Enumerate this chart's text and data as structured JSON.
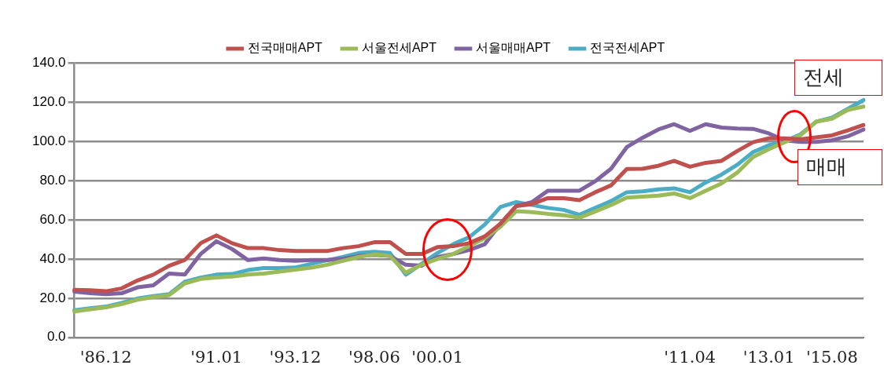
{
  "chart_data": {
    "type": "line",
    "categories": [
      null,
      null,
      "'86.12",
      null,
      null,
      null,
      null,
      null,
      null,
      "'91.01",
      null,
      null,
      null,
      null,
      "'93.12",
      null,
      null,
      null,
      null,
      "'98.06",
      null,
      null,
      null,
      "'00.01",
      null,
      null,
      null,
      null,
      null,
      null,
      null,
      null,
      null,
      null,
      null,
      null,
      null,
      null,
      null,
      "'11.04",
      null,
      null,
      null,
      null,
      "'13.01",
      null,
      null,
      null,
      "'15.08",
      null,
      null
    ],
    "series": [
      {
        "name": "전국매매APT",
        "color": "#c0504d",
        "values": [
          24.2,
          24,
          23.5,
          25,
          29,
          32,
          36.5,
          39.5,
          48,
          52,
          48,
          45.5,
          45.5,
          44.5,
          44,
          44,
          44,
          45.5,
          46.5,
          48.5,
          48.5,
          42.5,
          42.5,
          46,
          46.5,
          48,
          51.5,
          58,
          67,
          68,
          71,
          71,
          70,
          74,
          77.5,
          85.9,
          86,
          87.5,
          90,
          87,
          89,
          90,
          95,
          99.5,
          101.5,
          101.5,
          101,
          102,
          103,
          105.5,
          108.3
        ]
      },
      {
        "name": "서울전세APT",
        "color": "#9bbb59",
        "values": [
          13.2,
          14.3,
          15.3,
          17,
          19.2,
          20.5,
          21.5,
          27.5,
          29.8,
          30.5,
          31,
          32,
          32.5,
          33.5,
          34.5,
          35.5,
          37,
          39,
          41,
          42.3,
          41.5,
          33,
          37,
          40,
          42.5,
          46.5,
          50.5,
          56.5,
          64.4,
          63.9,
          63,
          62.3,
          61,
          64.2,
          67.5,
          71.3,
          71.8,
          72.3,
          73.4,
          71,
          74.8,
          78.5,
          84,
          92,
          96,
          99.5,
          103,
          110,
          111.5,
          116,
          117.7
        ]
      },
      {
        "name": "서울매매APT",
        "color": "#8064a2",
        "values": [
          23.3,
          22.5,
          22,
          22.5,
          25.5,
          26.5,
          32.5,
          32,
          42.5,
          49,
          45,
          39.4,
          40.2,
          39.4,
          39,
          39.4,
          39.4,
          40,
          41.5,
          42,
          41.5,
          37,
          36.5,
          41,
          42.5,
          44.5,
          47.5,
          58,
          67,
          69,
          74.8,
          74.8,
          74.8,
          79.6,
          86,
          97,
          101.8,
          106,
          108.7,
          105.3,
          108.7,
          107,
          106.5,
          106.3,
          104,
          100.5,
          99.7,
          99.7,
          100.5,
          102.5,
          106
        ]
      },
      {
        "name": "전국전세APT",
        "color": "#4bacc6",
        "values": [
          13.8,
          14.8,
          15.7,
          17.6,
          19.8,
          21,
          22,
          28.4,
          30.5,
          32,
          32.3,
          34.3,
          35.3,
          35.3,
          35.6,
          37.5,
          39.3,
          41,
          43,
          43.6,
          43,
          32,
          37.5,
          43,
          47.5,
          51,
          57.5,
          66.5,
          69,
          67.5,
          66,
          65,
          62.5,
          66,
          69.5,
          74,
          74.5,
          75.5,
          76,
          74,
          79,
          83,
          88,
          94.5,
          98,
          100,
          103.5,
          110,
          112,
          116.5,
          121
        ]
      }
    ],
    "ylim": [
      0,
      140
    ],
    "yticks": [
      {
        "value": 0,
        "label": "0.0"
      },
      {
        "value": 20,
        "label": "20.0"
      },
      {
        "value": 40,
        "label": "40.0"
      },
      {
        "value": 60,
        "label": "60.0"
      },
      {
        "value": 80,
        "label": "80.0"
      },
      {
        "value": 100,
        "label": "100.0"
      },
      {
        "value": 120,
        "label": "120.0"
      },
      {
        "value": 140,
        "label": "140.0"
      }
    ],
    "grid": "y",
    "legend": "top",
    "marker": "none",
    "line_style": "solid",
    "annotations": [
      "전세",
      "매매"
    ]
  }
}
